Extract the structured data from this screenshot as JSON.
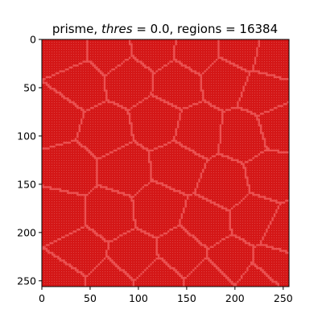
{
  "chart_data": {
    "type": "heatmap",
    "title_parts": [
      {
        "text": "prisme, ",
        "italic": false
      },
      {
        "text": "thres",
        "italic": true
      },
      {
        "text": " = 0.0, regions = 16384",
        "italic": false
      }
    ],
    "xlabel": "",
    "ylabel": "",
    "xlim": [
      0,
      256
    ],
    "ylim": [
      256,
      0
    ],
    "x_ticks": [
      0,
      50,
      100,
      150,
      200,
      250
    ],
    "y_ticks": [
      0,
      50,
      100,
      150,
      200,
      250
    ],
    "grid": false,
    "image_size": [
      256,
      256
    ],
    "regions": 16384,
    "colors": {
      "region_fill": "#d41717",
      "boundary": "#ee5a5a",
      "grid_dot": "#e56464",
      "axis": "#000000"
    },
    "region_seeds": [
      [
        25,
        10
      ],
      [
        70,
        12
      ],
      [
        115,
        8
      ],
      [
        160,
        12
      ],
      [
        205,
        10
      ],
      [
        240,
        18
      ],
      [
        40,
        45
      ],
      [
        90,
        40
      ],
      [
        140,
        45
      ],
      [
        190,
        40
      ],
      [
        230,
        55
      ],
      [
        15,
        80
      ],
      [
        65,
        95
      ],
      [
        120,
        85
      ],
      [
        160,
        95
      ],
      [
        210,
        100
      ],
      [
        245,
        90
      ],
      [
        30,
        135
      ],
      [
        85,
        135
      ],
      [
        140,
        130
      ],
      [
        190,
        150
      ],
      [
        235,
        140
      ],
      [
        20,
        180
      ],
      [
        70,
        180
      ],
      [
        120,
        175
      ],
      [
        170,
        190
      ],
      [
        220,
        185
      ],
      [
        250,
        200
      ],
      [
        40,
        220
      ],
      [
        95,
        225
      ],
      [
        145,
        220
      ],
      [
        195,
        230
      ],
      [
        240,
        235
      ],
      [
        20,
        250
      ],
      [
        70,
        252
      ],
      [
        120,
        250
      ],
      [
        175,
        250
      ],
      [
        225,
        252
      ]
    ]
  }
}
